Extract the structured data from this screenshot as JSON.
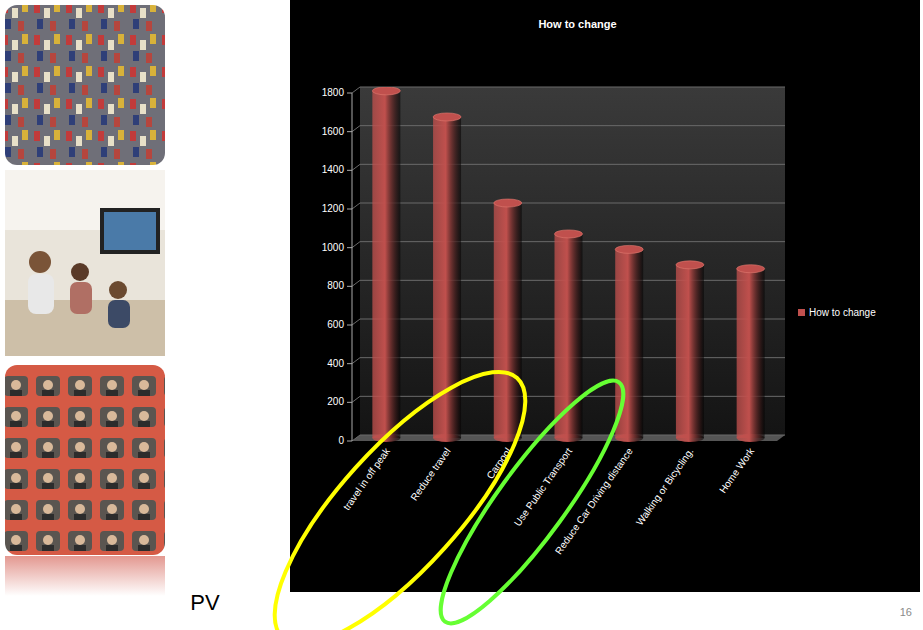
{
  "chart_data": {
    "type": "bar",
    "title": "How to change",
    "categories": [
      "travel in off peak",
      "Reduce travel",
      "Carpool",
      "Use Public Transport",
      "Reduce Car Driving distance",
      "Walking or Bicycling.",
      "Home Work"
    ],
    "series": [
      {
        "name": "How to change",
        "color": "#c0504d",
        "values": [
          1780,
          1645,
          1200,
          1040,
          960,
          880,
          860
        ]
      }
    ],
    "ylim": [
      0,
      1800
    ],
    "yticks": [
      0,
      200,
      400,
      600,
      800,
      1000,
      1200,
      1400,
      1600,
      1800
    ],
    "grid": true,
    "legend": "right"
  },
  "slide": {
    "caption": "PV",
    "page_number": 16
  }
}
